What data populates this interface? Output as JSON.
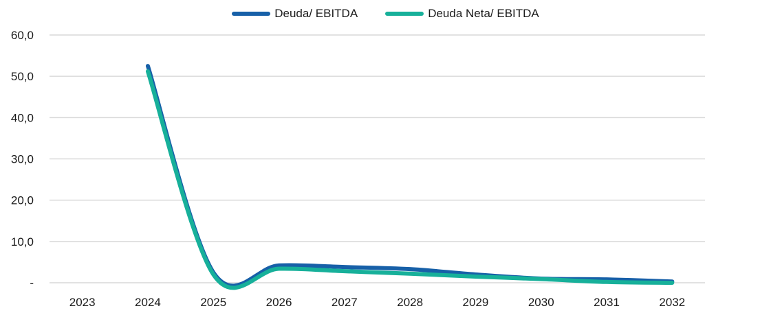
{
  "chart_data": {
    "type": "line",
    "title": "",
    "xlabel": "",
    "ylabel": "",
    "categories": [
      "2023",
      "2024",
      "2025",
      "2026",
      "2027",
      "2028",
      "2029",
      "2030",
      "2031",
      "2032"
    ],
    "series": [
      {
        "name": "Deuda/ EBITDA",
        "color": "#1760a8",
        "values": [
          null,
          52.5,
          2.5,
          4.2,
          3.8,
          3.3,
          2.0,
          1.0,
          0.8,
          0.3
        ]
      },
      {
        "name": "Deuda Neta/ EBITDA",
        "color": "#17b09a",
        "values": [
          null,
          51.2,
          2.0,
          3.4,
          2.8,
          2.2,
          1.5,
          0.9,
          0.2,
          0.0
        ]
      }
    ],
    "ylim": [
      0,
      60
    ],
    "yticks": [
      {
        "value": 0,
        "label": "-"
      },
      {
        "value": 10,
        "label": "10,0"
      },
      {
        "value": 20,
        "label": "20,0"
      },
      {
        "value": 30,
        "label": "30,0"
      },
      {
        "value": 40,
        "label": "40,0"
      },
      {
        "value": 50,
        "label": "50,0"
      },
      {
        "value": 60,
        "label": "60,0"
      }
    ],
    "grid": true,
    "legend_position": "top-center"
  }
}
